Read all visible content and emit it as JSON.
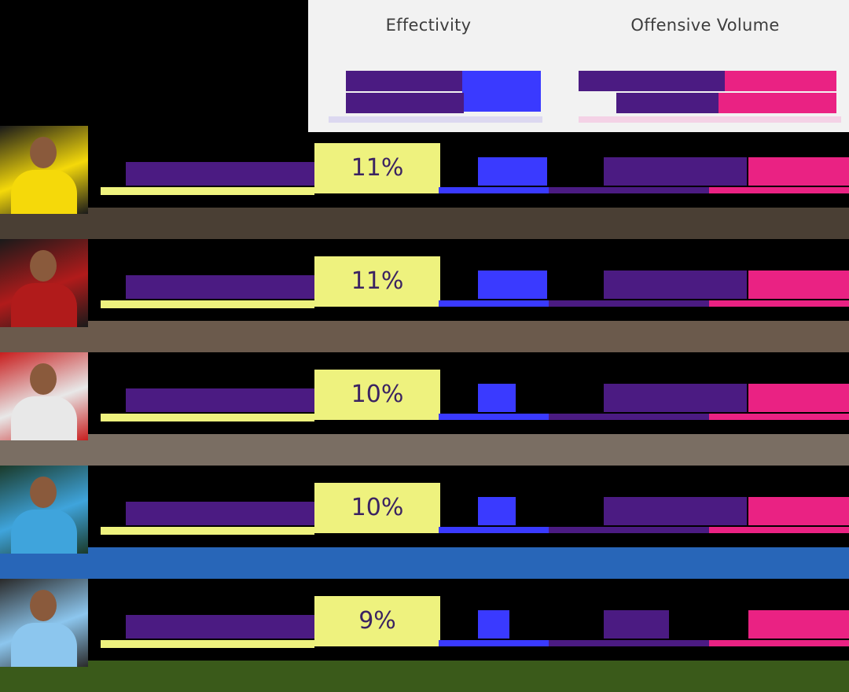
{
  "columns": {
    "effectivity": "Effectivity",
    "offensive_volume": "Offensive Volume"
  },
  "legend": {
    "left_top": "",
    "left_bottom": "",
    "right_top": "",
    "right_top_pink": "",
    "right_bottom": ""
  },
  "colors": {
    "purple": "#4b1b82",
    "blue": "#3a3aff",
    "pink": "#ea2283",
    "yellow": "#eef27e",
    "header_bg": "#f2f2f2"
  },
  "chart_data": {
    "type": "table",
    "columns": [
      "Effectivity",
      "Offensive Volume"
    ],
    "rows": [
      {
        "name": "",
        "effectivity": "11%",
        "blue_frac": 0.55,
        "purple_frac": 0.55,
        "pink_frac": 0.45,
        "band_color": "#4a3f34",
        "photo_palette": [
          "#f5d90a",
          "#1a1a1a"
        ]
      },
      {
        "name": "",
        "effectivity": "11%",
        "blue_frac": 0.55,
        "purple_frac": 0.55,
        "pink_frac": 0.45,
        "band_color": "#6b5a4c",
        "photo_palette": [
          "#b11b1b",
          "#1a1a1a"
        ]
      },
      {
        "name": "",
        "effectivity": "10%",
        "blue_frac": 0.3,
        "purple_frac": 0.55,
        "pink_frac": 0.45,
        "band_color": "#7a6e63",
        "photo_palette": [
          "#e8e8e8",
          "#c81e1e"
        ]
      },
      {
        "name": "",
        "effectivity": "10%",
        "blue_frac": 0.3,
        "purple_frac": 0.55,
        "pink_frac": 0.45,
        "band_color": "#2866b8",
        "photo_palette": [
          "#3fa4dc",
          "#1a3a2a"
        ]
      },
      {
        "name": "",
        "effectivity": "9%",
        "blue_frac": 0.25,
        "purple_frac": 0.25,
        "pink_frac": 0.45,
        "band_color": "#3a5a1a",
        "photo_palette": [
          "#8cc6ee",
          "#2a2a2a"
        ]
      }
    ]
  }
}
